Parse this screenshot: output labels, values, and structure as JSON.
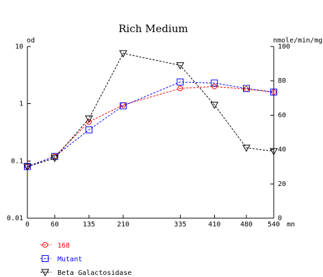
{
  "chart_data": {
    "type": "line",
    "title": "Rich Medium",
    "xlabel": "mn",
    "ylabel_left": "od",
    "ylabel_right": "nmole/min/mg",
    "x_ticks": [
      0,
      60,
      135,
      210,
      335,
      410,
      480,
      540
    ],
    "xlim": [
      0,
      540
    ],
    "y_left": {
      "scale": "log",
      "lim": [
        0.01,
        10
      ],
      "ticks": [
        "10",
        "1",
        "0.1",
        "0.01"
      ]
    },
    "y_right": {
      "scale": "linear",
      "lim": [
        0,
        100
      ],
      "ticks": [
        "100",
        "80",
        "60",
        "40",
        "20",
        "0"
      ]
    },
    "grid": false,
    "legend_position": "bottom-left",
    "series": [
      {
        "name": "168",
        "color": "#ff0000",
        "marker": "circle",
        "axis": "left",
        "x": [
          0,
          60,
          135,
          210,
          335,
          410,
          480,
          540
        ],
        "y": [
          0.08,
          0.12,
          0.48,
          0.95,
          1.85,
          2.0,
          1.8,
          1.6
        ]
      },
      {
        "name": "Mutant",
        "color": "#0000ff",
        "marker": "square",
        "axis": "left",
        "x": [
          0,
          60,
          135,
          210,
          335,
          410,
          480,
          540
        ],
        "y": [
          0.08,
          0.12,
          0.35,
          0.92,
          2.4,
          2.3,
          1.85,
          1.6
        ]
      },
      {
        "name": "Beta Galactosidase",
        "color": "#000000",
        "marker": "triangle-down",
        "axis": "right",
        "x": [
          0,
          60,
          135,
          210,
          335,
          410,
          480,
          540
        ],
        "y": [
          30,
          35,
          58,
          96,
          89,
          66,
          41,
          39
        ]
      }
    ]
  }
}
